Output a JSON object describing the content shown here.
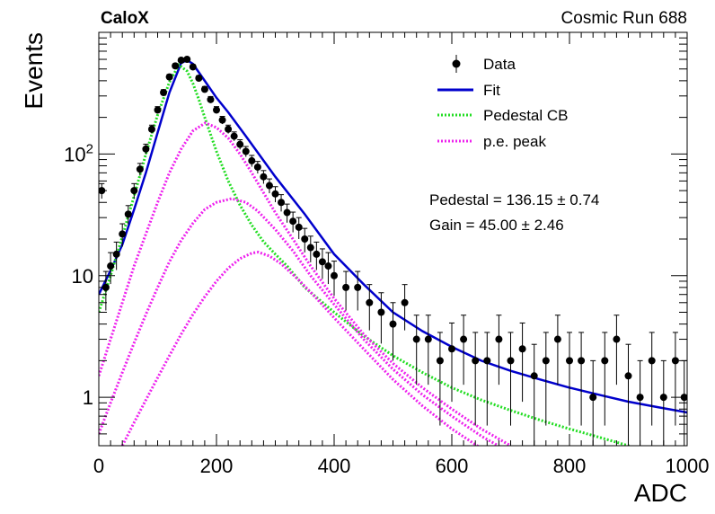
{
  "header": {
    "left_label": "CaloX",
    "right_label": "Cosmic Run 688"
  },
  "fit_results": {
    "pedestal_text": "Pedestal = 136.15 ± 0.74",
    "gain_text": "Gain = 45.00 ± 2.46"
  },
  "colors": {
    "data": "#000000",
    "fit": "#0000cc",
    "pedestal": "#22dd22",
    "pe_peak": "#ee22ee"
  },
  "chart_data": {
    "type": "scatter",
    "title": "",
    "xlabel": "ADC",
    "ylabel": "Events",
    "xlim": [
      0,
      1000
    ],
    "ylim": [
      0.4,
      1000
    ],
    "yscale": "log",
    "grid": false,
    "legend_position": "top-right",
    "x_ticks": [
      0,
      200,
      400,
      600,
      800,
      1000
    ],
    "y_ticks": [
      {
        "value": 1,
        "label": "1"
      },
      {
        "value": 10,
        "label": "10"
      },
      {
        "value": 100,
        "label": "10",
        "sup": "2"
      }
    ],
    "legend": [
      {
        "key": "data",
        "label": "Data"
      },
      {
        "key": "fit",
        "label": "Fit"
      },
      {
        "key": "pedestal",
        "label": "Pedestal CB"
      },
      {
        "key": "pe",
        "label": "p.e. peak"
      }
    ],
    "series": [
      {
        "name": "Data",
        "style": "points",
        "x": [
          5,
          12,
          20,
          30,
          40,
          50,
          60,
          70,
          80,
          90,
          100,
          110,
          120,
          130,
          140,
          150,
          160,
          170,
          180,
          190,
          200,
          210,
          220,
          230,
          240,
          250,
          260,
          270,
          280,
          290,
          300,
          310,
          320,
          330,
          340,
          350,
          360,
          370,
          380,
          390,
          400,
          420,
          440,
          460,
          480,
          500,
          520,
          540,
          560,
          580,
          600,
          620,
          640,
          660,
          680,
          700,
          720,
          740,
          760,
          780,
          800,
          820,
          840,
          860,
          880,
          900,
          920,
          940,
          960,
          980,
          995
        ],
        "y": [
          50,
          8,
          12,
          15,
          22,
          32,
          50,
          75,
          110,
          160,
          230,
          320,
          430,
          530,
          590,
          600,
          520,
          420,
          340,
          280,
          230,
          190,
          160,
          140,
          120,
          105,
          88,
          78,
          65,
          55,
          47,
          40,
          33,
          28,
          25,
          20,
          17,
          15,
          13,
          12,
          10,
          8,
          8,
          6,
          5,
          4,
          6,
          3,
          3,
          2,
          2.5,
          3,
          2,
          2,
          3,
          2,
          2.5,
          1.5,
          2,
          3,
          2,
          2,
          1,
          2,
          3,
          1.5,
          1,
          2,
          1,
          2,
          1
        ]
      },
      {
        "name": "Fit",
        "style": "line",
        "x": [
          0,
          20,
          40,
          60,
          80,
          100,
          120,
          140,
          150,
          160,
          180,
          200,
          220,
          250,
          300,
          350,
          400,
          450,
          500,
          550,
          600,
          650,
          700,
          750,
          800,
          850,
          900,
          950,
          1000
        ],
        "y": [
          7,
          11,
          18,
          35,
          70,
          150,
          320,
          560,
          590,
          550,
          400,
          290,
          220,
          140,
          65,
          32,
          15,
          8.5,
          5,
          3.5,
          2.6,
          2.0,
          1.65,
          1.4,
          1.2,
          1.05,
          0.92,
          0.83,
          0.75
        ]
      },
      {
        "name": "Pedestal CB",
        "style": "dotted",
        "x": [
          0,
          20,
          40,
          60,
          80,
          100,
          120,
          136,
          150,
          160,
          170,
          180,
          190,
          200,
          220,
          240,
          260,
          280,
          300,
          320,
          350,
          400,
          450,
          500,
          550,
          600,
          650,
          700,
          750,
          800,
          850,
          900,
          950,
          1000
        ],
        "y": [
          5,
          10,
          21,
          45,
          100,
          210,
          390,
          540,
          480,
          380,
          280,
          200,
          145,
          105,
          60,
          38,
          26,
          19,
          15,
          12,
          8,
          5,
          3.2,
          2.2,
          1.6,
          1.2,
          0.95,
          0.78,
          0.65,
          0.55,
          0.47,
          0.4,
          0.34,
          0.29
        ]
      },
      {
        "name": "p.e. peak",
        "style": "dotted",
        "x": [
          0,
          20,
          40,
          60,
          80,
          100,
          120,
          140,
          160,
          181,
          200,
          220,
          240,
          260,
          280,
          300,
          330,
          360,
          400,
          450,
          500,
          550,
          600,
          650,
          700
        ],
        "y": [
          1.5,
          3,
          6,
          12,
          22,
          40,
          70,
          110,
          155,
          180,
          165,
          135,
          100,
          70,
          48,
          33,
          20,
          12,
          6.5,
          3.3,
          1.9,
          1.2,
          0.8,
          0.55,
          0.4
        ]
      },
      {
        "name": "p.e. peak",
        "style": "dotted",
        "x": [
          0,
          20,
          40,
          60,
          80,
          100,
          120,
          140,
          160,
          180,
          200,
          226,
          250,
          270,
          300,
          330,
          360,
          400,
          450,
          500,
          550,
          600,
          650,
          700
        ],
        "y": [
          0.5,
          0.9,
          1.6,
          2.8,
          4.8,
          8,
          13,
          19.5,
          27,
          35,
          40,
          43,
          40,
          34,
          24,
          16,
          10,
          5.8,
          3,
          1.7,
          1.05,
          0.7,
          0.48,
          0.35
        ]
      },
      {
        "name": "p.e. peak",
        "style": "dotted",
        "x": [
          40,
          60,
          80,
          100,
          120,
          140,
          160,
          180,
          200,
          220,
          240,
          260,
          271,
          290,
          310,
          340,
          370,
          400,
          450,
          500,
          550,
          600,
          650
        ],
        "y": [
          0.4,
          0.62,
          0.95,
          1.45,
          2.2,
          3.3,
          4.8,
          6.7,
          9,
          11.5,
          13.8,
          15.3,
          15.6,
          14.5,
          12.5,
          9.2,
          6.5,
          4.5,
          2.5,
          1.4,
          0.85,
          0.55,
          0.38
        ]
      }
    ]
  }
}
